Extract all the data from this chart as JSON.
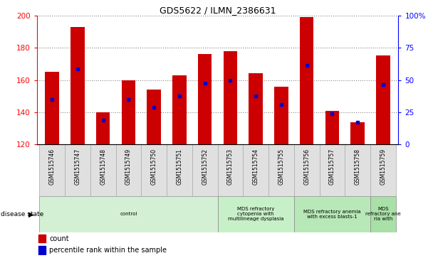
{
  "title": "GDS5622 / ILMN_2386631",
  "samples": [
    "GSM1515746",
    "GSM1515747",
    "GSM1515748",
    "GSM1515749",
    "GSM1515750",
    "GSM1515751",
    "GSM1515752",
    "GSM1515753",
    "GSM1515754",
    "GSM1515755",
    "GSM1515756",
    "GSM1515757",
    "GSM1515758",
    "GSM1515759"
  ],
  "counts": [
    165,
    193,
    140,
    160,
    154,
    163,
    176,
    178,
    164,
    156,
    199,
    141,
    134,
    175
  ],
  "percentile_vals": [
    148,
    167,
    135,
    148,
    143,
    150,
    158,
    160,
    150,
    145,
    169,
    139,
    134,
    157
  ],
  "ymin": 120,
  "ymax": 200,
  "yticks": [
    120,
    140,
    160,
    180,
    200
  ],
  "right_yticks": [
    0,
    25,
    50,
    75,
    100
  ],
  "right_ylabels": [
    "0",
    "25",
    "50",
    "75",
    "100%"
  ],
  "bar_color": "#cc0000",
  "dot_color": "#0000cc",
  "background_color": "#ffffff",
  "groups": [
    {
      "label": "control",
      "start": 0,
      "end": 7,
      "color": "#d4f0d4"
    },
    {
      "label": "MDS refractory\ncytopenia with\nmultilineage dysplasia",
      "start": 7,
      "end": 10,
      "color": "#c8f0c8"
    },
    {
      "label": "MDS refractory anemia\nwith excess blasts-1",
      "start": 10,
      "end": 13,
      "color": "#b8e8b8"
    },
    {
      "label": "MDS\nrefractory ane\nria with",
      "start": 13,
      "end": 14,
      "color": "#a8e0a8"
    }
  ],
  "disease_state_label": "disease state",
  "legend_count": "count",
  "legend_percentile": "percentile rank within the sample"
}
